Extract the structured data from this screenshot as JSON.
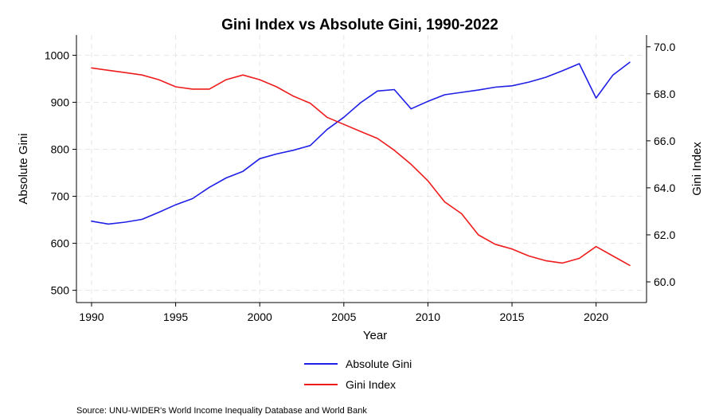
{
  "chart_data": {
    "type": "line",
    "title": "Gini Index vs Absolute Gini, 1990-2022",
    "xlabel": "Year",
    "ylabel_left": "Absolute Gini",
    "ylabel_right": "Gini Index",
    "xlim": [
      1990,
      2022
    ],
    "ylim_left": [
      500,
      1000
    ],
    "ylim_right": [
      60.0,
      70.0
    ],
    "x_ticks": [
      "1990",
      "1995",
      "2000",
      "2005",
      "2010",
      "2015",
      "2020"
    ],
    "y_left_ticks": [
      "500",
      "600",
      "700",
      "800",
      "900",
      "1000"
    ],
    "y_right_ticks": [
      "60.0",
      "62.0",
      "64.0",
      "66.0",
      "68.0",
      "70.0"
    ],
    "grid": true,
    "legend_position": "bottom",
    "x": [
      1990,
      1991,
      1992,
      1993,
      1994,
      1995,
      1996,
      1997,
      1998,
      1999,
      2000,
      2001,
      2002,
      2003,
      2004,
      2005,
      2006,
      2007,
      2008,
      2009,
      2010,
      2011,
      2012,
      2013,
      2014,
      2015,
      2016,
      2017,
      2018,
      2019,
      2020,
      2021,
      2022
    ],
    "series": [
      {
        "name": "Absolute Gini",
        "axis": "left",
        "color": "#1f1fe6",
        "values": [
          647,
          641,
          645,
          651,
          666,
          682,
          695,
          719,
          739,
          753,
          780,
          790,
          798,
          808,
          842,
          868,
          899,
          924,
          927,
          886,
          902,
          916,
          921,
          926,
          932,
          935,
          943,
          953,
          967,
          982,
          909,
          958,
          985
        ]
      },
      {
        "name": "Gini Index",
        "axis": "right",
        "color": "#ee1c1c",
        "values": [
          69.1,
          69.0,
          68.9,
          68.8,
          68.6,
          68.3,
          68.2,
          68.2,
          68.6,
          68.8,
          68.6,
          68.3,
          67.9,
          67.6,
          67.0,
          66.7,
          66.4,
          66.1,
          65.6,
          65.0,
          64.3,
          63.4,
          62.9,
          62.0,
          61.6,
          61.4,
          61.1,
          60.9,
          60.8,
          61.0,
          61.5,
          61.1,
          60.7
        ]
      }
    ]
  },
  "source_note": "Source: UNU-WIDER's World Income Inequality Database and World Bank"
}
